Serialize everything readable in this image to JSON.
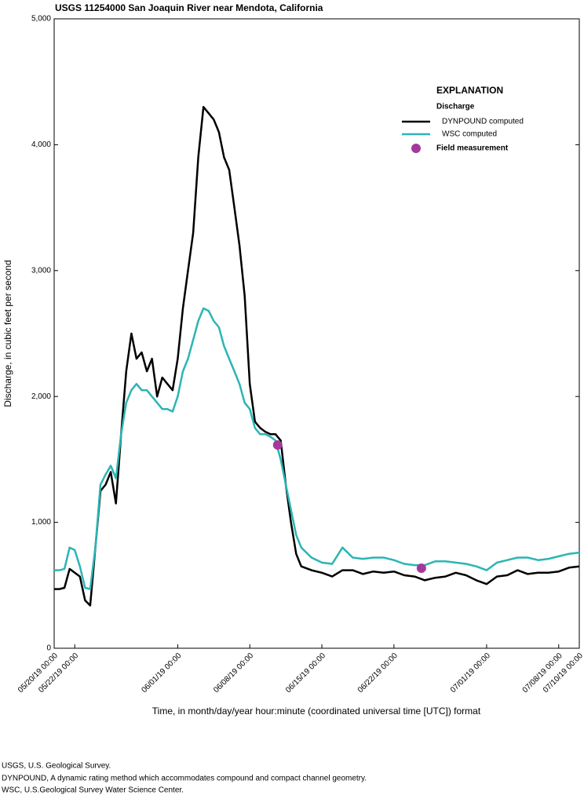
{
  "chart_data": {
    "type": "line",
    "title": "USGS 11254000 San Joaquin River near Mendota, California",
    "x_label": "Time, in month/day/year hour:minute (coordinated universal time [UTC]) format",
    "y_label": "Discharge, in cubic feet per second",
    "legend_title": "EXPLANATION",
    "legend_subtitle": "Discharge",
    "legend_position": "upper right",
    "grid": false,
    "xlim": [
      "05/20/19 00:00",
      "07/10/19 00:00"
    ],
    "xticks": [
      "05/20/19 00:00",
      "05/22/19 00:00",
      "06/01/19 00:00",
      "06/08/19 00:00",
      "06/15/19 00:00",
      "06/22/19 00:00",
      "07/01/19 00:00",
      "07/08/19 00:00",
      "07/10/19 00:00"
    ],
    "ylim": [
      0,
      5000
    ],
    "yticks": [
      0,
      {
        "value": 1000,
        "label": "1,000"
      },
      {
        "value": 2000,
        "label": "2,000"
      },
      {
        "value": 3000,
        "label": "3,000"
      },
      {
        "value": 4000,
        "label": "4,000"
      },
      {
        "value": 5000,
        "label": "5,000"
      }
    ],
    "x": [
      "05/20/19 00:00",
      "05/20/19 12:00",
      "05/21/19 00:00",
      "05/21/19 12:00",
      "05/22/19 00:00",
      "05/22/19 12:00",
      "05/23/19 00:00",
      "05/23/19 12:00",
      "05/24/19 00:00",
      "05/24/19 12:00",
      "05/25/19 00:00",
      "05/25/19 12:00",
      "05/26/19 00:00",
      "05/26/19 12:00",
      "05/27/19 00:00",
      "05/27/19 12:00",
      "05/28/19 00:00",
      "05/28/19 12:00",
      "05/29/19 00:00",
      "05/29/19 12:00",
      "05/30/19 00:00",
      "05/30/19 12:00",
      "05/31/19 00:00",
      "05/31/19 12:00",
      "06/01/19 00:00",
      "06/01/19 12:00",
      "06/02/19 00:00",
      "06/02/19 12:00",
      "06/03/19 00:00",
      "06/03/19 12:00",
      "06/04/19 00:00",
      "06/04/19 12:00",
      "06/05/19 00:00",
      "06/05/19 12:00",
      "06/06/19 00:00",
      "06/06/19 12:00",
      "06/07/19 00:00",
      "06/07/19 12:00",
      "06/08/19 00:00",
      "06/08/19 12:00",
      "06/09/19 00:00",
      "06/09/19 12:00",
      "06/10/19 00:00",
      "06/10/19 12:00",
      "06/11/19 00:00",
      "06/11/19 12:00",
      "06/12/19 00:00",
      "06/12/19 12:00",
      "06/13/19 00:00",
      "06/14/19 00:00",
      "06/15/19 00:00",
      "06/16/19 00:00",
      "06/17/19 00:00",
      "06/18/19 00:00",
      "06/19/19 00:00",
      "06/20/19 00:00",
      "06/21/19 00:00",
      "06/22/19 00:00",
      "06/23/19 00:00",
      "06/24/19 00:00",
      "06/25/19 00:00",
      "06/26/19 00:00",
      "06/27/19 00:00",
      "06/28/19 00:00",
      "06/29/19 00:00",
      "06/30/19 00:00",
      "07/01/19 00:00",
      "07/02/19 00:00",
      "07/03/19 00:00",
      "07/04/19 00:00",
      "07/05/19 00:00",
      "07/06/19 00:00",
      "07/07/19 00:00",
      "07/08/19 00:00",
      "07/09/19 00:00",
      "07/10/19 00:00"
    ],
    "series": [
      {
        "name": "DYNPOUND computed",
        "color": "#000000",
        "style": "line",
        "values": [
          470,
          470,
          480,
          630,
          600,
          570,
          380,
          340,
          800,
          1250,
          1300,
          1400,
          1150,
          1700,
          2200,
          2500,
          2300,
          2350,
          2200,
          2300,
          2000,
          2150,
          2100,
          2050,
          2300,
          2700,
          3000,
          3300,
          3900,
          4300,
          4250,
          4200,
          4100,
          3900,
          3800,
          3500,
          3200,
          2800,
          2100,
          1800,
          1750,
          1720,
          1700,
          1700,
          1650,
          1300,
          1000,
          750,
          650,
          620,
          600,
          570,
          620,
          620,
          590,
          610,
          600,
          610,
          580,
          570,
          540,
          560,
          570,
          600,
          580,
          540,
          510,
          570,
          580,
          620,
          590,
          600,
          600,
          610,
          640,
          650
        ]
      },
      {
        "name": "WSC computed",
        "color": "#2bb5b5",
        "style": "line",
        "values": [
          620,
          620,
          630,
          800,
          780,
          650,
          480,
          470,
          800,
          1300,
          1380,
          1450,
          1350,
          1700,
          1950,
          2050,
          2100,
          2050,
          2050,
          2000,
          1950,
          1900,
          1900,
          1880,
          2000,
          2200,
          2300,
          2450,
          2600,
          2700,
          2680,
          2600,
          2550,
          2400,
          2300,
          2200,
          2100,
          1950,
          1900,
          1750,
          1700,
          1700,
          1680,
          1650,
          1500,
          1300,
          1100,
          900,
          800,
          720,
          680,
          670,
          800,
          720,
          710,
          720,
          720,
          700,
          670,
          660,
          660,
          690,
          690,
          680,
          670,
          650,
          620,
          680,
          700,
          720,
          720,
          700,
          710,
          730,
          750,
          760
        ]
      },
      {
        "name": "Field measurement",
        "color": "#a3399b",
        "style": "point",
        "x": [
          "06/10/19 17:00",
          "06/24/19 16:00"
        ],
        "values": [
          1615,
          636
        ]
      }
    ],
    "notes": [
      "USGS, U.S. Geological Survey.",
      "DYNPOUND, A dynamic rating method which accommodates compound and compact channel geometry.",
      "WSC, U.S.Geological Survey Water Science Center."
    ]
  }
}
